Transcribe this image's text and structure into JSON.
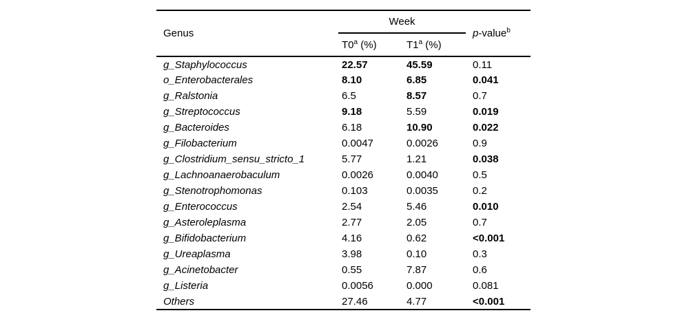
{
  "table": {
    "header": {
      "genus": "Genus",
      "week": "Week",
      "t0_label": "T0",
      "t0_sup": "a",
      "t0_unit": " (%)",
      "t1_label": "T1",
      "t1_sup": "a",
      "t1_unit": " (%)",
      "p_italic": "p",
      "p_rest": "-value",
      "p_sup": "b"
    },
    "rows": [
      {
        "genus": "g_Staphylococcus",
        "t0": "22.57",
        "t0_bold": true,
        "t1": "45.59",
        "t1_bold": true,
        "p": "0.11",
        "p_bold": false
      },
      {
        "genus": "o_Enterobacterales",
        "t0": "8.10",
        "t0_bold": true,
        "t1": "6.85",
        "t1_bold": true,
        "p": "0.041",
        "p_bold": true
      },
      {
        "genus": "g_Ralstonia",
        "t0": "6.5",
        "t0_bold": false,
        "t1": "8.57",
        "t1_bold": true,
        "p": "0.7",
        "p_bold": false
      },
      {
        "genus": "g_Streptococcus",
        "t0": "9.18",
        "t0_bold": true,
        "t1": "5.59",
        "t1_bold": false,
        "p": "0.019",
        "p_bold": true
      },
      {
        "genus": "g_Bacteroides",
        "t0": "6.18",
        "t0_bold": false,
        "t1": "10.90",
        "t1_bold": true,
        "p": "0.022",
        "p_bold": true
      },
      {
        "genus": "g_Filobacterium",
        "t0": "0.0047",
        "t0_bold": false,
        "t1": "0.0026",
        "t1_bold": false,
        "p": "0.9",
        "p_bold": false
      },
      {
        "genus": "g_Clostridium_sensu_stricto_1",
        "t0": "5.77",
        "t0_bold": false,
        "t1": "1.21",
        "t1_bold": false,
        "p": "0.038",
        "p_bold": true
      },
      {
        "genus": "g_Lachnoanaerobaculum",
        "t0": "0.0026",
        "t0_bold": false,
        "t1": "0.0040",
        "t1_bold": false,
        "p": "0.5",
        "p_bold": false
      },
      {
        "genus": "g_Stenotrophomonas",
        "t0": "0.103",
        "t0_bold": false,
        "t1": "0.0035",
        "t1_bold": false,
        "p": "0.2",
        "p_bold": false
      },
      {
        "genus": "g_Enterococcus",
        "t0": "2.54",
        "t0_bold": false,
        "t1": "5.46",
        "t1_bold": false,
        "p": "0.010",
        "p_bold": true
      },
      {
        "genus": "g_Asteroleplasma",
        "t0": "2.77",
        "t0_bold": false,
        "t1": "2.05",
        "t1_bold": false,
        "p": "0.7",
        "p_bold": false
      },
      {
        "genus": "g_Bifidobacterium",
        "t0": "4.16",
        "t0_bold": false,
        "t1": "0.62",
        "t1_bold": false,
        "p": "<0.001",
        "p_bold": true
      },
      {
        "genus": "g_Ureaplasma",
        "t0": "3.98",
        "t0_bold": false,
        "t1": "0.10",
        "t1_bold": false,
        "p": "0.3",
        "p_bold": false
      },
      {
        "genus": "g_Acinetobacter",
        "t0": "0.55",
        "t0_bold": false,
        "t1": "7.87",
        "t1_bold": false,
        "p": "0.6",
        "p_bold": false
      },
      {
        "genus": "g_Listeria",
        "t0": "0.0056",
        "t0_bold": false,
        "t1": "0.000",
        "t1_bold": false,
        "p": "0.081",
        "p_bold": false
      },
      {
        "genus": "Others",
        "t0": "27.46",
        "t0_bold": false,
        "t1": "4.77",
        "t1_bold": false,
        "p": "<0.001",
        "p_bold": true
      }
    ]
  }
}
